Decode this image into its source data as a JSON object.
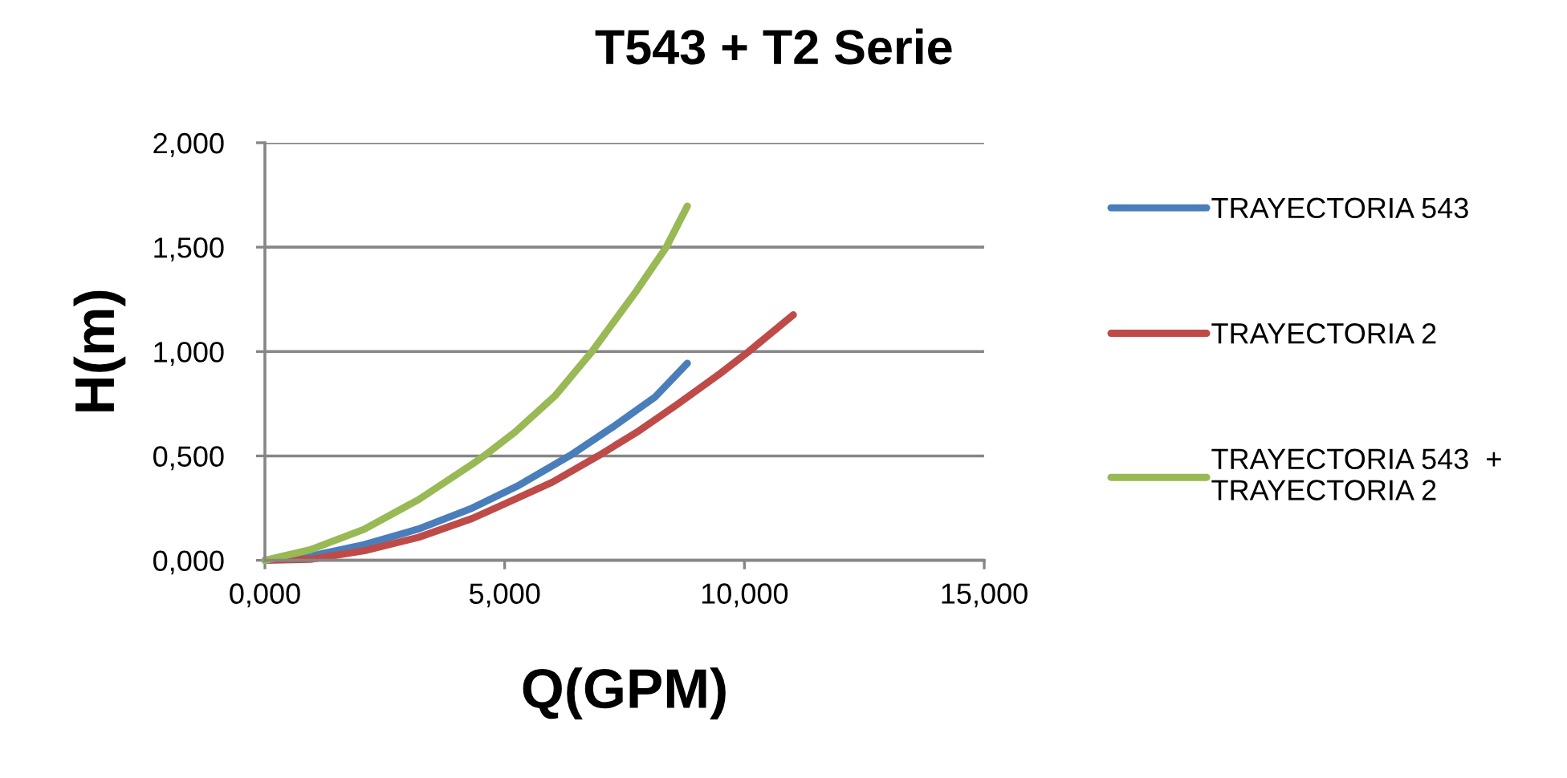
{
  "chart_data": {
    "type": "line",
    "title": "T543 + T2 Serie",
    "xlabel": "Q(GPM)",
    "ylabel": "H(m)",
    "xlim": [
      0,
      15
    ],
    "xticks": [
      {
        "value": 0,
        "label": "0,000"
      },
      {
        "value": 5,
        "label": "5,000"
      },
      {
        "value": 10,
        "label": "10,000"
      },
      {
        "value": 15,
        "label": "15,000"
      }
    ],
    "ylim": [
      0,
      2
    ],
    "yticks": [
      {
        "value": 0,
        "label": "0,000"
      },
      {
        "value": 0.5,
        "label": "0,500"
      },
      {
        "value": 1,
        "label": "1,000"
      },
      {
        "value": 1.5,
        "label": "1,500"
      },
      {
        "value": 2,
        "label": "2,000"
      }
    ],
    "grid": "y",
    "legend": "right",
    "series": [
      {
        "name": "TRAYECTORIA 543",
        "color": "#4a7ebb",
        "x": [
          0,
          0.95,
          2.07,
          3.2,
          4.32,
          5.3,
          6.35,
          7.24,
          8.14,
          8.81
        ],
        "values": [
          0,
          0.02,
          0.075,
          0.15,
          0.25,
          0.36,
          0.5,
          0.636,
          0.783,
          0.944
        ]
      },
      {
        "name": "TRAYECTORIA 2",
        "color": "#be4b48",
        "x": [
          0,
          0.95,
          2.07,
          3.2,
          4.32,
          5.0,
          6.0,
          6.95,
          7.8,
          8.59,
          9.49,
          10.09,
          11.02
        ],
        "values": [
          0,
          0.005,
          0.046,
          0.11,
          0.2,
          0.27,
          0.375,
          0.5,
          0.62,
          0.745,
          0.894,
          1.0,
          1.176
        ]
      },
      {
        "name": "TRAYECTORIA 543  +\nTRAYECTORIA 2",
        "color": "#98b954",
        "x": [
          0,
          0.95,
          2.07,
          3.2,
          4.32,
          4.57,
          5.22,
          6.06,
          6.82,
          7.75,
          8.37,
          8.81
        ],
        "values": [
          0,
          0.051,
          0.149,
          0.29,
          0.46,
          0.5,
          0.615,
          0.79,
          1.0,
          1.291,
          1.5,
          1.697
        ]
      }
    ]
  }
}
